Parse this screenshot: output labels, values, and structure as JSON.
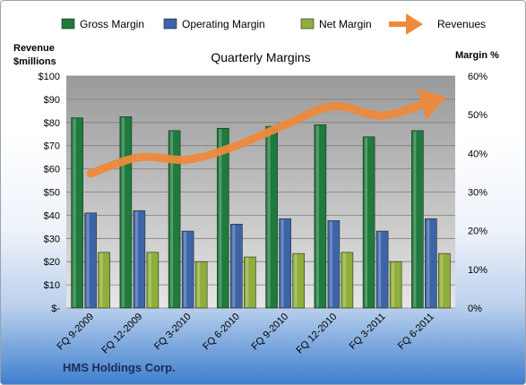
{
  "footer": {
    "company": "HMS Holdings Corp."
  },
  "chart_data": {
    "type": "bar",
    "title": "Quarterly Margins",
    "ylabel_left": [
      "Revenue",
      "$millions"
    ],
    "ylabel_right": "Margin %",
    "categories": [
      "FQ 9-2009",
      "FQ 12-2009",
      "FQ 3-2010",
      "FQ 6-2010",
      "FQ 9-2010",
      "FQ 12-2010",
      "FQ 3-2011",
      "FQ 6-2011"
    ],
    "left_axis": {
      "min": 0,
      "max": 100,
      "step": 10,
      "ticks": [
        "$-",
        "$10",
        "$20",
        "$30",
        "$40",
        "$50",
        "$60",
        "$70",
        "$80",
        "$90",
        "$100"
      ]
    },
    "right_axis": {
      "min": 0,
      "max": 60,
      "step": 10,
      "ticks": [
        "0%",
        "10%",
        "20%",
        "30%",
        "40%",
        "50%",
        "60%"
      ]
    },
    "grid": true,
    "legend": "top",
    "series": [
      {
        "name": "Gross Margin",
        "axis": "right",
        "type": "bar",
        "color": "#1f7a3d",
        "values": [
          49.2,
          49.5,
          45.9,
          46.5,
          47.0,
          47.4,
          44.3,
          45.9
        ]
      },
      {
        "name": "Operating Margin",
        "axis": "right",
        "type": "bar",
        "color": "#3e64a8",
        "values": [
          24.6,
          25.2,
          19.9,
          21.7,
          23.1,
          22.6,
          19.9,
          23.1
        ]
      },
      {
        "name": "Net Margin",
        "axis": "right",
        "type": "bar",
        "color": "#8fae3a",
        "values": [
          14.4,
          14.4,
          12.0,
          13.2,
          14.1,
          14.4,
          12.0,
          14.1
        ]
      },
      {
        "name": "Revenues",
        "axis": "left",
        "type": "line",
        "color": "#ee8a3c",
        "values": [
          58,
          65,
          64,
          70,
          79,
          87,
          83,
          89
        ]
      }
    ]
  }
}
